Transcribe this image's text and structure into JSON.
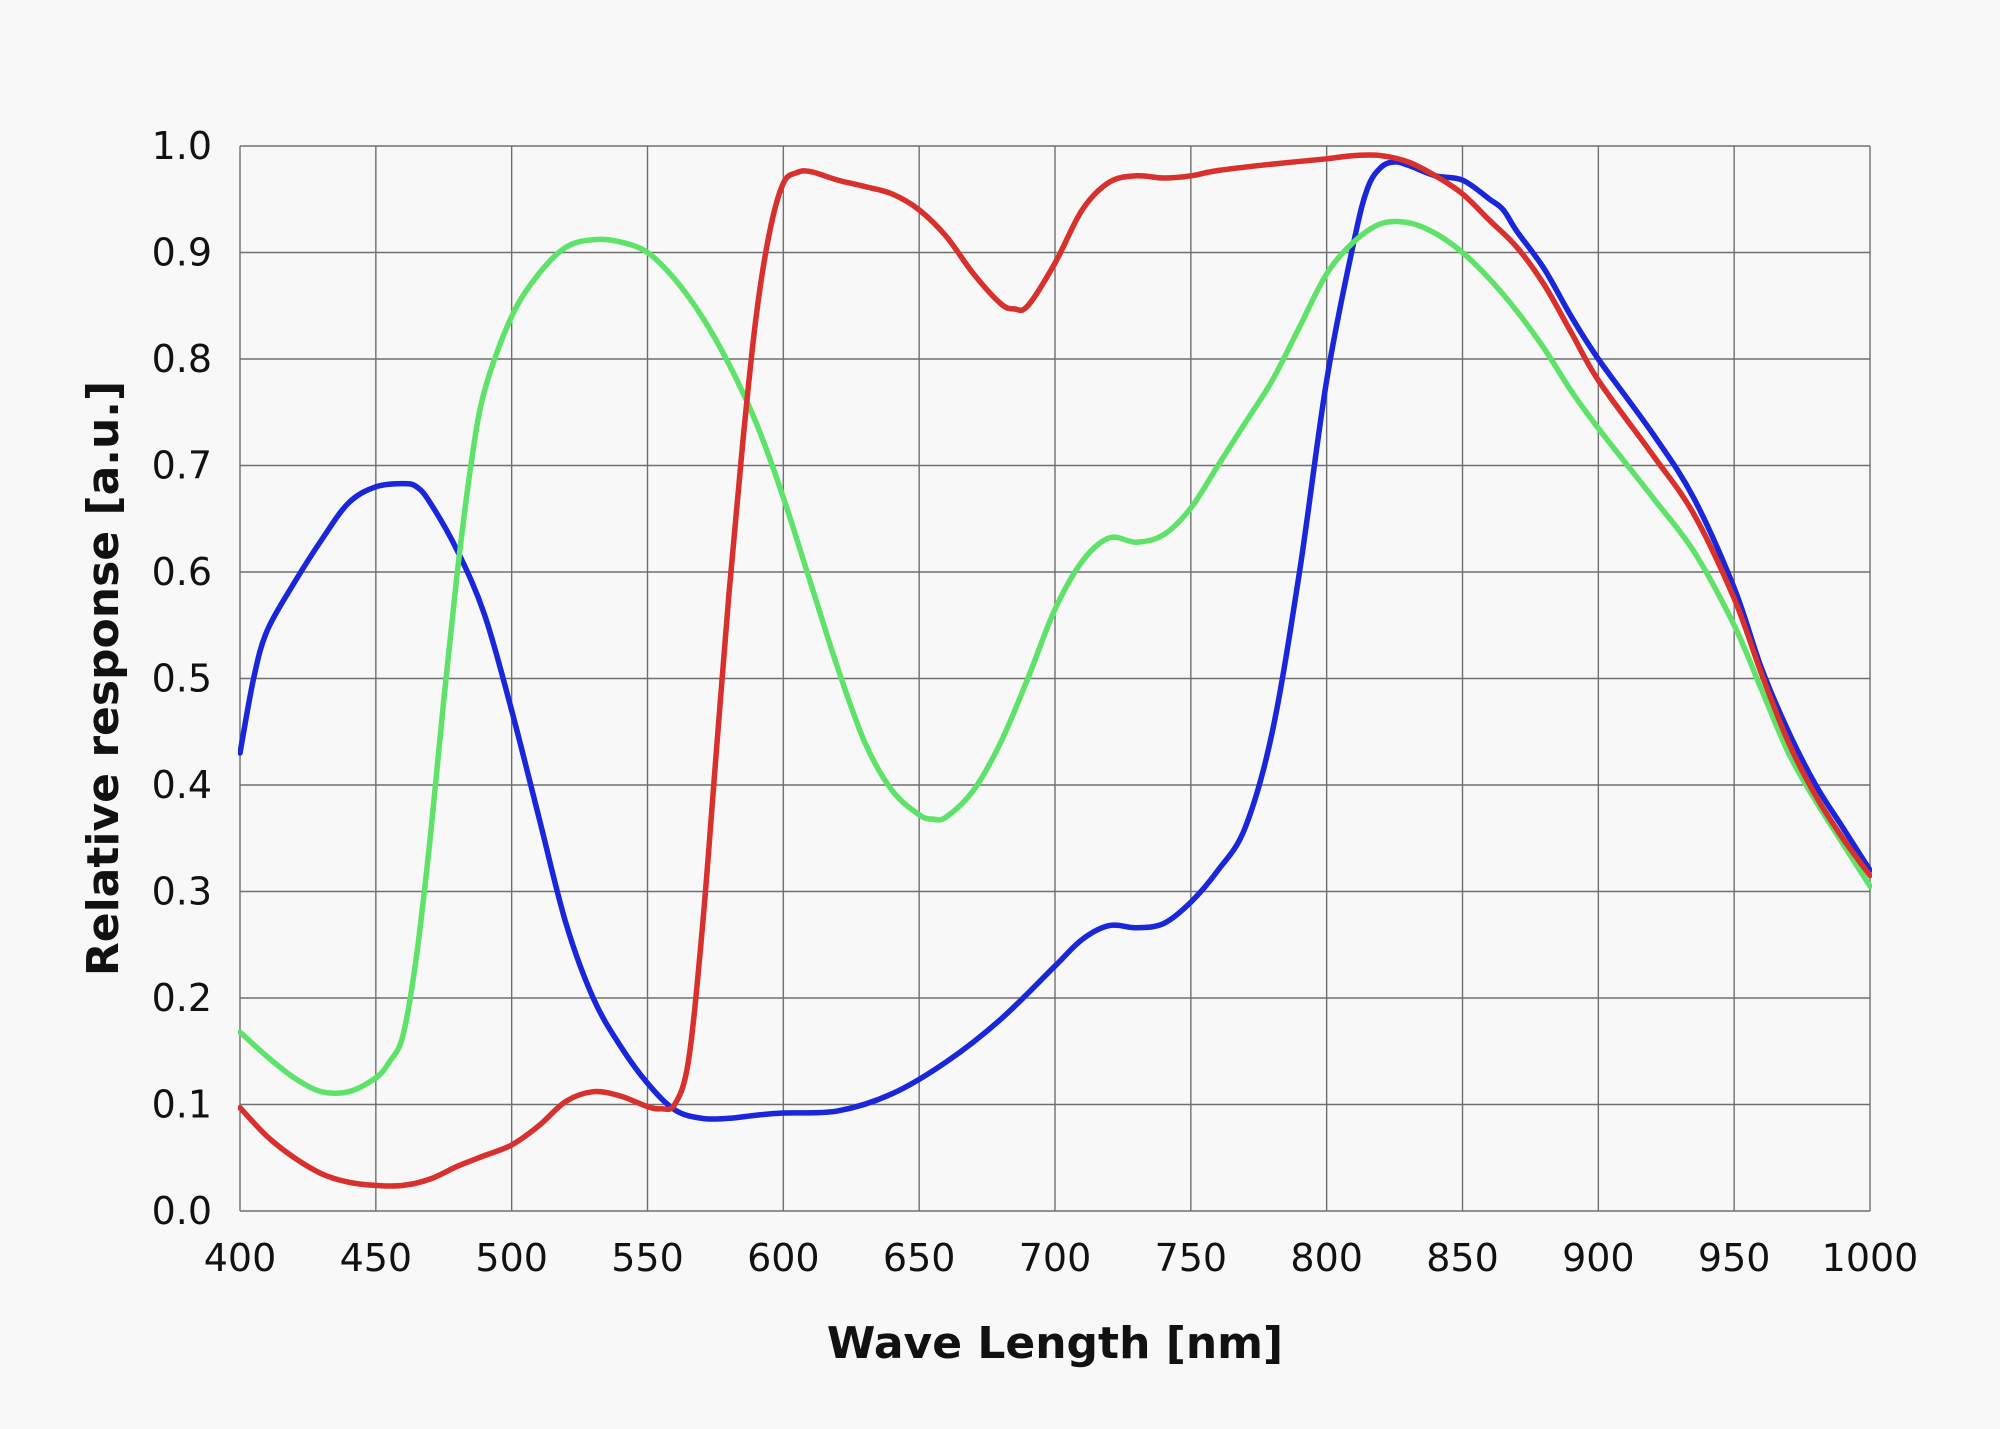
{
  "chart_data": {
    "type": "line",
    "title": "",
    "xlabel": "Wave Length [nm]",
    "ylabel": "Relative response  [a.u.]",
    "xlim": [
      400,
      1000
    ],
    "ylim": [
      0.0,
      1.0
    ],
    "grid": true,
    "x_ticks": [
      400,
      450,
      500,
      550,
      600,
      650,
      700,
      750,
      800,
      850,
      900,
      950,
      1000
    ],
    "x_tick_labels": [
      "400",
      "450",
      "500",
      "550",
      "600",
      "650",
      "700",
      "750",
      "800",
      "850",
      "900",
      "950",
      "1000"
    ],
    "y_ticks": [
      0.0,
      0.1,
      0.2,
      0.3,
      0.4,
      0.5,
      0.6,
      0.7,
      0.8,
      0.9,
      1.0
    ],
    "y_tick_labels": [
      "0.0",
      "0.1",
      "0.2",
      "0.3",
      "0.4",
      "0.5",
      "0.6",
      "0.7",
      "0.8",
      "0.9",
      "1.0"
    ],
    "series": [
      {
        "color": "#1a26d9",
        "points": [
          [
            400,
            0.43
          ],
          [
            405,
            0.5
          ],
          [
            410,
            0.545
          ],
          [
            420,
            0.59
          ],
          [
            430,
            0.63
          ],
          [
            440,
            0.665
          ],
          [
            450,
            0.68
          ],
          [
            460,
            0.683
          ],
          [
            465,
            0.68
          ],
          [
            470,
            0.665
          ],
          [
            480,
            0.62
          ],
          [
            490,
            0.56
          ],
          [
            500,
            0.47
          ],
          [
            510,
            0.37
          ],
          [
            520,
            0.27
          ],
          [
            530,
            0.2
          ],
          [
            540,
            0.155
          ],
          [
            550,
            0.12
          ],
          [
            560,
            0.095
          ],
          [
            570,
            0.087
          ],
          [
            580,
            0.087
          ],
          [
            590,
            0.09
          ],
          [
            600,
            0.092
          ],
          [
            620,
            0.094
          ],
          [
            640,
            0.11
          ],
          [
            660,
            0.14
          ],
          [
            680,
            0.18
          ],
          [
            700,
            0.23
          ],
          [
            710,
            0.255
          ],
          [
            720,
            0.268
          ],
          [
            730,
            0.266
          ],
          [
            740,
            0.27
          ],
          [
            750,
            0.29
          ],
          [
            760,
            0.32
          ],
          [
            770,
            0.36
          ],
          [
            780,
            0.45
          ],
          [
            790,
            0.6
          ],
          [
            800,
            0.78
          ],
          [
            810,
            0.91
          ],
          [
            815,
            0.96
          ],
          [
            820,
            0.98
          ],
          [
            825,
            0.985
          ],
          [
            830,
            0.982
          ],
          [
            840,
            0.972
          ],
          [
            850,
            0.968
          ],
          [
            860,
            0.95
          ],
          [
            865,
            0.94
          ],
          [
            870,
            0.92
          ],
          [
            880,
            0.885
          ],
          [
            890,
            0.84
          ],
          [
            900,
            0.8
          ],
          [
            920,
            0.73
          ],
          [
            935,
            0.67
          ],
          [
            950,
            0.585
          ],
          [
            960,
            0.51
          ],
          [
            970,
            0.45
          ],
          [
            980,
            0.4
          ],
          [
            990,
            0.36
          ],
          [
            1000,
            0.32
          ]
        ]
      },
      {
        "color": "#5fe26a",
        "points": [
          [
            400,
            0.168
          ],
          [
            410,
            0.145
          ],
          [
            420,
            0.125
          ],
          [
            430,
            0.112
          ],
          [
            440,
            0.112
          ],
          [
            450,
            0.125
          ],
          [
            455,
            0.14
          ],
          [
            460,
            0.165
          ],
          [
            465,
            0.24
          ],
          [
            470,
            0.35
          ],
          [
            475,
            0.48
          ],
          [
            480,
            0.6
          ],
          [
            485,
            0.7
          ],
          [
            490,
            0.77
          ],
          [
            500,
            0.84
          ],
          [
            510,
            0.88
          ],
          [
            520,
            0.905
          ],
          [
            530,
            0.912
          ],
          [
            540,
            0.91
          ],
          [
            550,
            0.9
          ],
          [
            560,
            0.875
          ],
          [
            570,
            0.84
          ],
          [
            580,
            0.795
          ],
          [
            590,
            0.74
          ],
          [
            600,
            0.67
          ],
          [
            610,
            0.59
          ],
          [
            620,
            0.51
          ],
          [
            630,
            0.44
          ],
          [
            640,
            0.395
          ],
          [
            650,
            0.372
          ],
          [
            655,
            0.368
          ],
          [
            660,
            0.37
          ],
          [
            670,
            0.395
          ],
          [
            680,
            0.44
          ],
          [
            690,
            0.5
          ],
          [
            700,
            0.565
          ],
          [
            710,
            0.61
          ],
          [
            720,
            0.632
          ],
          [
            730,
            0.628
          ],
          [
            740,
            0.635
          ],
          [
            750,
            0.66
          ],
          [
            760,
            0.7
          ],
          [
            770,
            0.74
          ],
          [
            780,
            0.78
          ],
          [
            790,
            0.83
          ],
          [
            800,
            0.88
          ],
          [
            810,
            0.91
          ],
          [
            820,
            0.927
          ],
          [
            830,
            0.928
          ],
          [
            840,
            0.918
          ],
          [
            850,
            0.9
          ],
          [
            860,
            0.875
          ],
          [
            870,
            0.845
          ],
          [
            880,
            0.81
          ],
          [
            890,
            0.77
          ],
          [
            900,
            0.735
          ],
          [
            920,
            0.67
          ],
          [
            935,
            0.62
          ],
          [
            950,
            0.55
          ],
          [
            960,
            0.49
          ],
          [
            970,
            0.43
          ],
          [
            980,
            0.385
          ],
          [
            990,
            0.345
          ],
          [
            1000,
            0.305
          ]
        ]
      },
      {
        "color": "#d8302c",
        "points": [
          [
            400,
            0.097
          ],
          [
            410,
            0.07
          ],
          [
            420,
            0.05
          ],
          [
            430,
            0.035
          ],
          [
            440,
            0.027
          ],
          [
            450,
            0.024
          ],
          [
            460,
            0.024
          ],
          [
            470,
            0.03
          ],
          [
            480,
            0.042
          ],
          [
            490,
            0.052
          ],
          [
            500,
            0.062
          ],
          [
            510,
            0.08
          ],
          [
            520,
            0.103
          ],
          [
            530,
            0.112
          ],
          [
            540,
            0.108
          ],
          [
            550,
            0.098
          ],
          [
            555,
            0.096
          ],
          [
            560,
            0.1
          ],
          [
            565,
            0.14
          ],
          [
            570,
            0.26
          ],
          [
            575,
            0.42
          ],
          [
            580,
            0.58
          ],
          [
            585,
            0.72
          ],
          [
            590,
            0.84
          ],
          [
            595,
            0.92
          ],
          [
            600,
            0.965
          ],
          [
            605,
            0.975
          ],
          [
            610,
            0.976
          ],
          [
            620,
            0.968
          ],
          [
            630,
            0.962
          ],
          [
            640,
            0.955
          ],
          [
            650,
            0.94
          ],
          [
            660,
            0.915
          ],
          [
            670,
            0.88
          ],
          [
            680,
            0.852
          ],
          [
            685,
            0.847
          ],
          [
            690,
            0.85
          ],
          [
            700,
            0.89
          ],
          [
            710,
            0.94
          ],
          [
            720,
            0.966
          ],
          [
            730,
            0.972
          ],
          [
            740,
            0.97
          ],
          [
            750,
            0.972
          ],
          [
            760,
            0.977
          ],
          [
            780,
            0.983
          ],
          [
            800,
            0.988
          ],
          [
            810,
            0.991
          ],
          [
            820,
            0.991
          ],
          [
            830,
            0.985
          ],
          [
            840,
            0.972
          ],
          [
            850,
            0.955
          ],
          [
            860,
            0.93
          ],
          [
            870,
            0.905
          ],
          [
            880,
            0.87
          ],
          [
            890,
            0.825
          ],
          [
            900,
            0.78
          ],
          [
            920,
            0.71
          ],
          [
            935,
            0.655
          ],
          [
            950,
            0.575
          ],
          [
            960,
            0.505
          ],
          [
            970,
            0.44
          ],
          [
            980,
            0.39
          ],
          [
            990,
            0.35
          ],
          [
            1000,
            0.315
          ]
        ]
      }
    ]
  }
}
